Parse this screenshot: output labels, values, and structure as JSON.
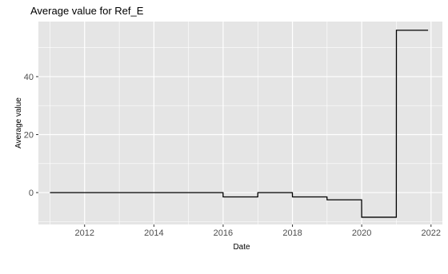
{
  "chart_data": {
    "type": "line",
    "title": "Average value for Ref_E",
    "xlabel": "Date",
    "ylabel": "Average value",
    "x_ticks": [
      "2012",
      "2014",
      "2016",
      "2018",
      "2020",
      "2022"
    ],
    "y_ticks": [
      "0",
      "20",
      "40"
    ],
    "xlim": [
      "2010-09-01",
      "2022-05-01"
    ],
    "ylim": [
      -11,
      59
    ],
    "grid": true,
    "background": "#e5e5e5",
    "grid_color": "#ffffff",
    "line_color": "#000000",
    "series": [
      {
        "x": [
          "2011-01-01",
          "2015-12-31",
          "2016-01-01",
          "2016-12-31",
          "2017-01-01",
          "2017-12-31",
          "2018-01-01",
          "2018-12-31",
          "2019-01-01",
          "2019-12-31",
          "2020-01-01",
          "2020-12-31",
          "2021-01-01",
          "2021-12-01"
        ],
        "y": [
          0,
          0,
          -1.5,
          -1.5,
          0,
          0,
          -1.5,
          -1.5,
          -2.5,
          -2.5,
          -8.5,
          -8.5,
          56,
          56
        ]
      }
    ]
  }
}
